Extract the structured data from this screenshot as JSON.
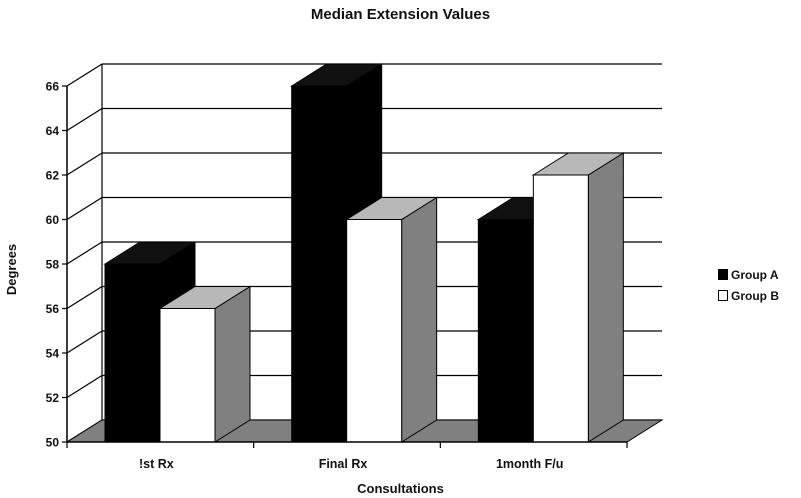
{
  "chart_data": {
    "type": "bar",
    "title": "Median Extension Values",
    "xlabel": "Consultations",
    "ylabel": "Degrees",
    "categories": [
      "!st Rx",
      "Final Rx",
      "1month F/u"
    ],
    "series": [
      {
        "name": "Group A",
        "values": [
          58,
          66,
          60
        ],
        "color": "#000000"
      },
      {
        "name": "Group B",
        "values": [
          56,
          60,
          62
        ],
        "color": "#ffffff"
      }
    ],
    "ylim": [
      50,
      66
    ],
    "yticks": [
      50,
      52,
      54,
      56,
      58,
      60,
      62,
      64,
      66
    ],
    "grid": true,
    "style": "3d",
    "legend_position": "right",
    "colors": {
      "floor": "#808080",
      "bar_side": "#808080",
      "bar_top_light": "#b8b8b8",
      "bar_top_dark": "#111111"
    }
  }
}
